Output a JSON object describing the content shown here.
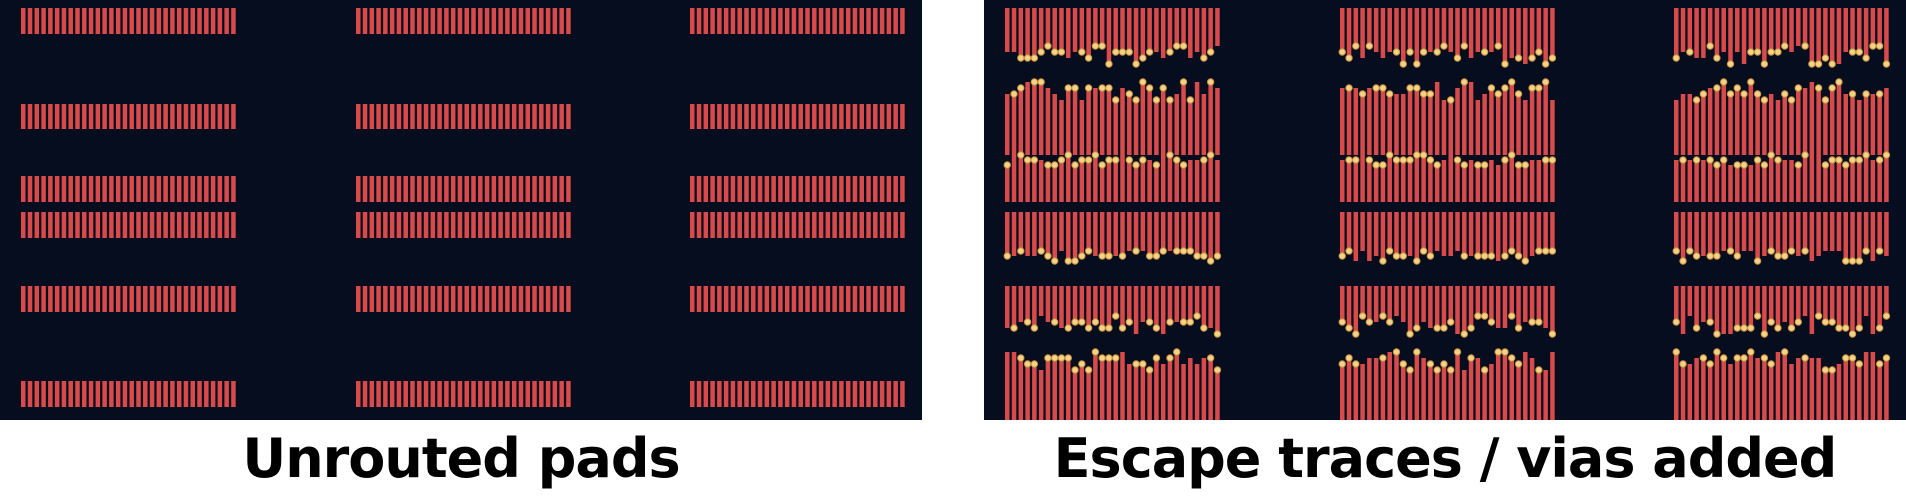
{
  "colors": {
    "board": "#050d1f",
    "pad": "#d94a4a",
    "via_fill": "#f3d38a",
    "via_ring": "#c9913a",
    "background": "#ffffff",
    "caption": "#000000"
  },
  "panels": [
    {
      "id": "unrouted",
      "caption": "Unrouted pads",
      "mode": "pads"
    },
    {
      "id": "routed",
      "caption": "Escape traces / vias added",
      "mode": "escape"
    }
  ],
  "layout_summary": {
    "block_columns": 3,
    "pad_rows": 6,
    "pads_per_row": 32
  }
}
